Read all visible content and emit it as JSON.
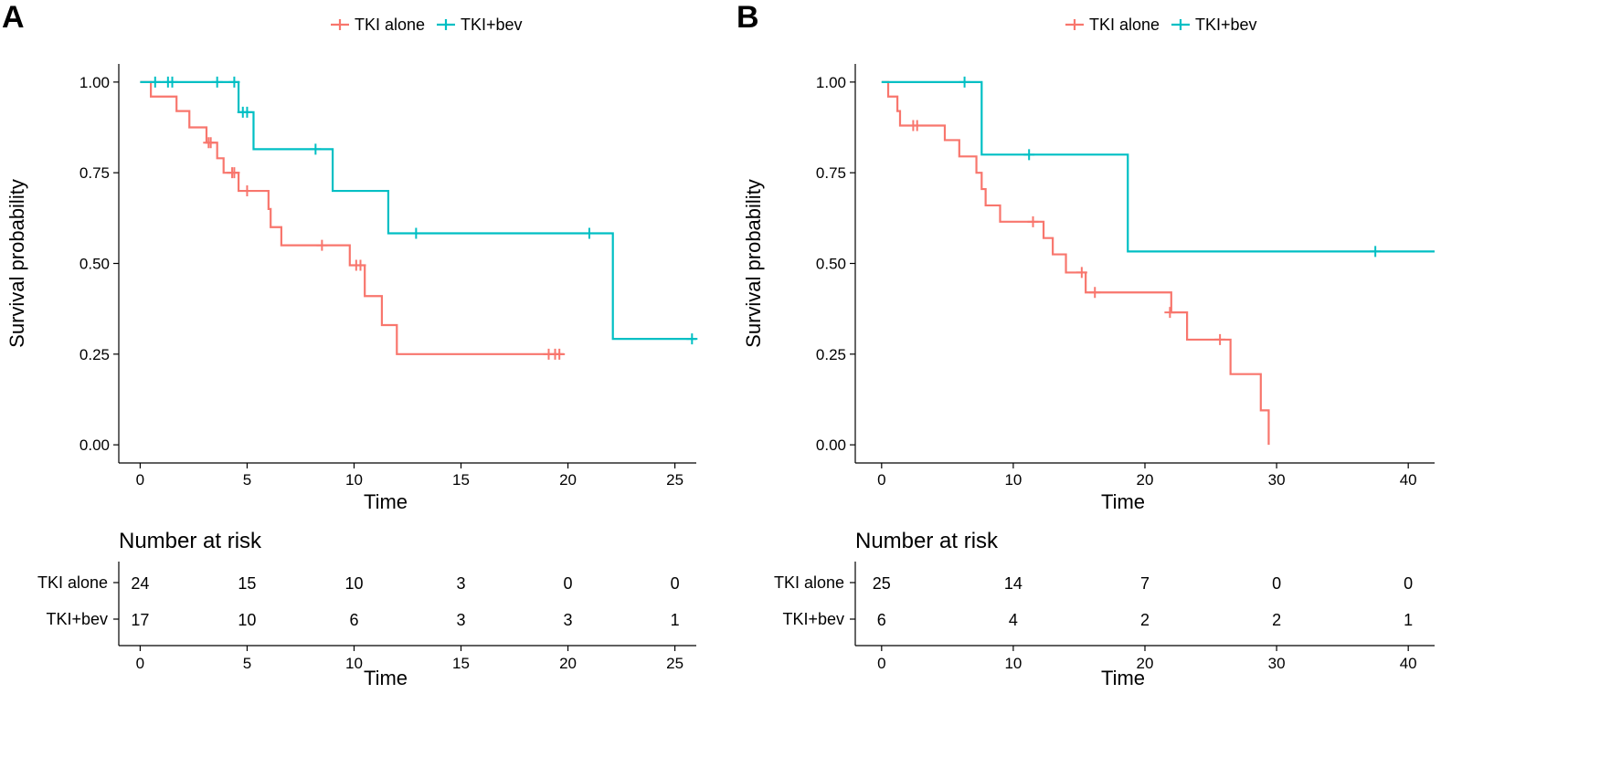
{
  "figure": {
    "type": "kaplan-meier-figure"
  },
  "chart_data": [
    {
      "type": "line",
      "subtype": "kaplan-meier",
      "panel_label": "A",
      "title": "",
      "xlabel": "Time",
      "ylabel": "Survival probability",
      "xlim": [
        -1,
        26
      ],
      "ylim": [
        -0.05,
        1.05
      ],
      "x_ticks": [
        0,
        5,
        10,
        15,
        20,
        25
      ],
      "y_ticks": [
        0.0,
        0.25,
        0.5,
        0.75,
        1.0
      ],
      "y_tick_labels": [
        "0.00",
        "0.25",
        "0.50",
        "0.75",
        "1.00"
      ],
      "grid": false,
      "legend_position": "top-center",
      "legend": [
        "TKI alone",
        "TKI+bev"
      ],
      "series": [
        {
          "name": "TKI alone",
          "color": "#F8766D",
          "steps": [
            [
              0,
              1.0
            ],
            [
              0.5,
              0.96
            ],
            [
              1.7,
              0.92
            ],
            [
              2.3,
              0.875
            ],
            [
              3.1,
              0.833
            ],
            [
              3.6,
              0.79
            ],
            [
              3.9,
              0.75
            ],
            [
              4.6,
              0.7
            ],
            [
              6.0,
              0.65
            ],
            [
              6.1,
              0.6
            ],
            [
              6.6,
              0.55
            ],
            [
              9.8,
              0.495
            ],
            [
              10.5,
              0.41
            ],
            [
              11.3,
              0.33
            ],
            [
              12.0,
              0.25
            ],
            [
              19.8,
              0.25
            ]
          ],
          "censor": [
            [
              3.2,
              0.833
            ],
            [
              3.3,
              0.833
            ],
            [
              4.3,
              0.75
            ],
            [
              4.4,
              0.75
            ],
            [
              5.0,
              0.7
            ],
            [
              8.5,
              0.55
            ],
            [
              10.1,
              0.495
            ],
            [
              10.3,
              0.495
            ],
            [
              19.1,
              0.25
            ],
            [
              19.4,
              0.25
            ],
            [
              19.6,
              0.25
            ]
          ]
        },
        {
          "name": "TKI+bev",
          "color": "#00BFC4",
          "steps": [
            [
              0,
              1.0
            ],
            [
              4.6,
              0.917
            ],
            [
              5.3,
              0.815
            ],
            [
              9.0,
              0.7
            ],
            [
              11.6,
              0.583
            ],
            [
              22.1,
              0.292
            ],
            [
              26,
              0.292
            ]
          ],
          "censor": [
            [
              0.7,
              1.0
            ],
            [
              1.3,
              1.0
            ],
            [
              1.5,
              1.0
            ],
            [
              3.6,
              1.0
            ],
            [
              4.4,
              1.0
            ],
            [
              4.8,
              0.917
            ],
            [
              5.0,
              0.917
            ],
            [
              8.2,
              0.815
            ],
            [
              12.9,
              0.583
            ],
            [
              21.0,
              0.583
            ],
            [
              25.8,
              0.292
            ]
          ]
        }
      ],
      "risk_table": {
        "title": "Number at risk",
        "xlabel": "Time",
        "times": [
          0,
          5,
          10,
          15,
          20,
          25
        ],
        "rows": [
          {
            "name": "TKI alone",
            "counts": [
              "24",
              "15",
              "10",
              "3",
              "0",
              "0"
            ]
          },
          {
            "name": "TKI+bev",
            "counts": [
              "17",
              "10",
              "6",
              "3",
              "3",
              "1"
            ]
          }
        ]
      }
    },
    {
      "type": "line",
      "subtype": "kaplan-meier",
      "panel_label": "B",
      "title": "",
      "xlabel": "Time",
      "ylabel": "Survival probability",
      "xlim": [
        -2,
        42
      ],
      "ylim": [
        -0.05,
        1.05
      ],
      "x_ticks": [
        0,
        10,
        20,
        30,
        40
      ],
      "y_ticks": [
        0.0,
        0.25,
        0.5,
        0.75,
        1.0
      ],
      "y_tick_labels": [
        "0.00",
        "0.25",
        "0.50",
        "0.75",
        "1.00"
      ],
      "grid": false,
      "legend_position": "top-center",
      "legend": [
        "TKI alone",
        "TKI+bev"
      ],
      "series": [
        {
          "name": "TKI alone",
          "color": "#F8766D",
          "steps": [
            [
              0,
              1.0
            ],
            [
              0.5,
              0.96
            ],
            [
              1.2,
              0.92
            ],
            [
              1.4,
              0.88
            ],
            [
              4.8,
              0.84
            ],
            [
              5.9,
              0.795
            ],
            [
              7.2,
              0.75
            ],
            [
              7.6,
              0.705
            ],
            [
              7.9,
              0.66
            ],
            [
              9.0,
              0.615
            ],
            [
              12.3,
              0.57
            ],
            [
              13.0,
              0.525
            ],
            [
              14.0,
              0.475
            ],
            [
              15.5,
              0.42
            ],
            [
              22.0,
              0.365
            ],
            [
              23.2,
              0.29
            ],
            [
              26.5,
              0.195
            ],
            [
              28.8,
              0.095
            ],
            [
              29.4,
              0.0
            ]
          ],
          "censor": [
            [
              2.4,
              0.88
            ],
            [
              2.7,
              0.88
            ],
            [
              11.5,
              0.615
            ],
            [
              15.2,
              0.475
            ],
            [
              16.2,
              0.42
            ],
            [
              21.9,
              0.365
            ],
            [
              25.7,
              0.29
            ]
          ]
        },
        {
          "name": "TKI+bev",
          "color": "#00BFC4",
          "steps": [
            [
              0,
              1.0
            ],
            [
              7.6,
              0.8
            ],
            [
              18.7,
              0.533
            ],
            [
              42,
              0.533
            ]
          ],
          "censor": [
            [
              6.3,
              1.0
            ],
            [
              11.2,
              0.8
            ],
            [
              37.5,
              0.533
            ]
          ]
        }
      ],
      "risk_table": {
        "title": "Number at risk",
        "xlabel": "Time",
        "times": [
          0,
          10,
          20,
          30,
          40
        ],
        "rows": [
          {
            "name": "TKI alone",
            "counts": [
              "25",
              "14",
              "7",
              "0",
              "0"
            ]
          },
          {
            "name": "TKI+bev",
            "counts": [
              "6",
              "4",
              "2",
              "2",
              "1"
            ]
          }
        ]
      }
    }
  ]
}
